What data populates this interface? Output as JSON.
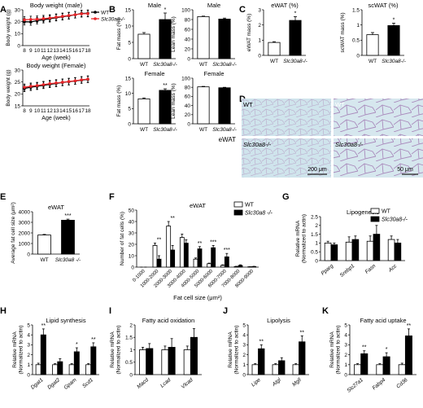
{
  "figure": {
    "panel_letters": [
      "A",
      "B",
      "C",
      "D",
      "E",
      "F",
      "G",
      "H",
      "I",
      "J",
      "K"
    ]
  },
  "chart_data": [
    {
      "id": "A1",
      "type": "line",
      "title": "Body weight (male)",
      "xlabel": "Age (week)",
      "ylabel": "Body weight (g)",
      "x": [
        8,
        9,
        10,
        11,
        12,
        13,
        14,
        15,
        16,
        17,
        18
      ],
      "xlim": [
        8,
        18
      ],
      "ylim": [
        0,
        30
      ],
      "yticks": [
        0,
        10,
        20,
        30
      ],
      "series": [
        {
          "name": "WT",
          "color": "#000000",
          "values": [
            20.0,
            19.8,
            20.9,
            21.7,
            22.5,
            23.4,
            24.2,
            24.9,
            25.8,
            26.9,
            27.1
          ]
        },
        {
          "name": "Slc30a8-/-",
          "color": "#e8262a",
          "values": [
            21.6,
            21.9,
            22.1,
            22.6,
            23.1,
            23.8,
            24.5,
            25.2,
            25.9,
            26.6,
            26.8
          ]
        }
      ]
    },
    {
      "id": "A2",
      "type": "line",
      "title": "Body weight (Female)",
      "xlabel": "Age (week)",
      "ylabel": "Body weight (g)",
      "x": [
        8,
        9,
        10,
        11,
        12,
        13,
        14,
        15,
        16,
        17,
        18
      ],
      "xlim": [
        8,
        18
      ],
      "ylim": [
        15,
        30
      ],
      "yticks": [
        15,
        20,
        25,
        30
      ],
      "series": [
        {
          "name": "WT",
          "color": "#000000",
          "values": [
            22.3,
            22.8,
            23.2,
            23.6,
            24.0,
            24.4,
            24.8,
            25.1,
            25.4,
            25.8,
            26.1
          ]
        },
        {
          "name": "Slc30a8-/-",
          "color": "#e8262a",
          "values": [
            22.8,
            23.2,
            23.5,
            23.9,
            24.3,
            24.6,
            24.9,
            25.2,
            25.5,
            25.9,
            26.2
          ]
        }
      ]
    },
    {
      "id": "B1",
      "type": "bar",
      "title": "Male",
      "ylabel": "Fat mass (%)",
      "categories": [
        "WT",
        "Slc30a8-/-"
      ],
      "values": [
        7.5,
        12.0
      ],
      "errors": [
        0.5,
        2.0
      ],
      "ylim": [
        0,
        15
      ],
      "yticks": [
        0,
        5,
        10,
        15
      ],
      "sig": [
        "",
        "*"
      ]
    },
    {
      "id": "B2",
      "type": "bar",
      "title": "Male",
      "ylabel": "Lean mass (%)",
      "categories": [
        "WT",
        "Slc30a8-/-"
      ],
      "values": [
        86,
        81
      ],
      "errors": [
        1,
        2
      ],
      "ylim": [
        0,
        100
      ],
      "yticks": [
        0,
        20,
        40,
        60,
        80,
        100
      ],
      "sig": [
        "",
        ""
      ]
    },
    {
      "id": "B3",
      "type": "bar",
      "title": "Female",
      "ylabel": "Fat mass (%)",
      "categories": [
        "WT",
        "Slc30a8-/-"
      ],
      "values": [
        8.2,
        11.0
      ],
      "errors": [
        0.3,
        0.5
      ],
      "ylim": [
        0,
        15
      ],
      "yticks": [
        0,
        5,
        10,
        15
      ],
      "sig": [
        "",
        "**"
      ]
    },
    {
      "id": "B4",
      "type": "bar",
      "title": "Female",
      "ylabel": "Lean mass (%)",
      "categories": [
        "WT",
        "Slc30a8-/-"
      ],
      "values": [
        81,
        79
      ],
      "errors": [
        1,
        1
      ],
      "ylim": [
        0,
        100
      ],
      "yticks": [
        0,
        20,
        40,
        60,
        80,
        100
      ],
      "sig": [
        "",
        ""
      ]
    },
    {
      "id": "C1",
      "type": "bar",
      "title": "eWAT (%)",
      "ylabel": "eWAT mass (%)",
      "categories": [
        "WT",
        "Slc30a8-/-"
      ],
      "values": [
        0.85,
        2.3
      ],
      "errors": [
        0.05,
        0.25
      ],
      "ylim": [
        0,
        3
      ],
      "yticks": [
        0,
        1,
        2,
        3
      ],
      "sig": [
        "",
        "*"
      ]
    },
    {
      "id": "C2",
      "type": "bar",
      "title": "scWAT (%)",
      "ylabel": "scWAT mass (%)",
      "categories": [
        "WT",
        "Slc30a8-/-"
      ],
      "values": [
        0.68,
        0.98
      ],
      "errors": [
        0.07,
        0.08
      ],
      "ylim": [
        0,
        1.5
      ],
      "yticks": [
        0,
        0.5,
        1.0,
        1.5
      ],
      "sig": [
        "",
        "*"
      ]
    },
    {
      "id": "E",
      "type": "bar",
      "title": "eWAT",
      "ylabel": "Average fat cell size (μm²)",
      "categories": [
        "WT",
        "Slc30a8 -/-"
      ],
      "values": [
        1800,
        3200
      ],
      "errors": [
        60,
        100
      ],
      "ylim": [
        0,
        4000
      ],
      "yticks": [
        0,
        1000,
        2000,
        3000,
        4000
      ],
      "sig": [
        "",
        "***"
      ]
    },
    {
      "id": "F",
      "type": "bar",
      "title": "eWAT",
      "xlabel": "Fat cell size (μm²)",
      "ylabel": "Number of fat cells (%)",
      "categories": [
        "0-1000",
        "1000-2000",
        "2000-3000",
        "3000-4000",
        "4000-5000",
        "5000-6000",
        "6000-7000",
        "7000-8000",
        "8000-9000"
      ],
      "ylim": [
        0,
        50
      ],
      "yticks": [
        0,
        10,
        20,
        30,
        40,
        50
      ],
      "series": [
        {
          "name": "WT",
          "values": [
            0,
            19,
            36,
            26,
            7,
            3,
            1.5,
            0.5,
            0.3
          ],
          "errors": [
            0,
            2,
            4,
            3,
            1,
            0.5,
            0.5,
            0.2,
            0.1
          ]
        },
        {
          "name": "Slc30a8 -/-",
          "values": [
            0,
            7,
            15,
            21,
            16,
            17,
            9,
            1.5,
            0.5
          ],
          "errors": [
            0,
            3,
            4,
            3,
            2,
            2,
            3,
            0.5,
            0.2
          ]
        }
      ],
      "sig": [
        "",
        "**",
        "**",
        "",
        "**",
        "***",
        "***",
        "",
        ""
      ]
    },
    {
      "id": "G",
      "type": "bar",
      "title": "Lipogenesis",
      "ylabel": "Relative mRNA\n(Normalized to actin)",
      "categories": [
        "Pparg",
        "Srebp1",
        "Fasn",
        "Acc"
      ],
      "ylim": [
        0,
        2.5
      ],
      "yticks": [
        0,
        0.5,
        1.0,
        1.5,
        2.0,
        2.5
      ],
      "series": [
        {
          "name": "WT",
          "values": [
            1.0,
            1.05,
            1.1,
            1.2
          ],
          "errors": [
            0.1,
            0.3,
            0.3,
            0.2
          ]
        },
        {
          "name": "Slc30a8-/-",
          "values": [
            0.9,
            1.2,
            1.5,
            1.0
          ],
          "errors": [
            0.1,
            0.2,
            0.5,
            0.2
          ]
        }
      ],
      "sig": [
        "",
        "",
        "",
        ""
      ]
    },
    {
      "id": "H",
      "type": "bar",
      "title": "Lipid synthesis",
      "ylabel": "Relative mRNA\n(Normalized to actin)",
      "categories": [
        "Dgat1",
        "Dgat2",
        "Gpam",
        "Scd1"
      ],
      "ylim": [
        0,
        5
      ],
      "yticks": [
        0,
        1,
        2,
        3,
        4,
        5
      ],
      "series": [
        {
          "name": "WT",
          "values": [
            1.0,
            1.0,
            1.0,
            1.0
          ],
          "errors": [
            0.15,
            0.1,
            0.1,
            0.1
          ]
        },
        {
          "name": "Slc30a8-/-",
          "values": [
            4.0,
            1.3,
            2.3,
            2.8
          ],
          "errors": [
            0.6,
            0.3,
            0.4,
            0.4
          ]
        }
      ],
      "sig": [
        "**",
        "",
        "*",
        "**"
      ]
    },
    {
      "id": "I",
      "type": "bar",
      "title": "Fatty acid oxidation",
      "ylabel": "Relative mRNA\n(Normalized to actin)",
      "categories": [
        "Macd",
        "Lcad",
        "Vlcad"
      ],
      "ylim": [
        0,
        2.0
      ],
      "yticks": [
        0,
        0.5,
        1.0,
        1.5,
        2.0
      ],
      "series": [
        {
          "name": "WT",
          "values": [
            1.0,
            1.0,
            1.0
          ],
          "errors": [
            0.1,
            0.15,
            0.15
          ]
        },
        {
          "name": "Slc30a8-/-",
          "values": [
            1.05,
            1.1,
            1.5
          ],
          "errors": [
            0.2,
            0.35,
            0.35
          ]
        }
      ],
      "sig": [
        "",
        "",
        ""
      ]
    },
    {
      "id": "J",
      "type": "bar",
      "title": "Lipolysis",
      "ylabel": "Relative mRNA\n(Normalized to actin)",
      "categories": [
        "Lipe",
        "Atgl",
        "Mgll"
      ],
      "ylim": [
        0,
        5
      ],
      "yticks": [
        0,
        1,
        2,
        3,
        4,
        5
      ],
      "series": [
        {
          "name": "WT",
          "values": [
            1.0,
            1.0,
            1.0
          ],
          "errors": [
            0.1,
            0.1,
            0.1
          ]
        },
        {
          "name": "Slc30a8-/-",
          "values": [
            2.6,
            1.4,
            3.3
          ],
          "errors": [
            0.4,
            0.3,
            0.6
          ]
        }
      ],
      "sig": [
        "**",
        "",
        "**"
      ]
    },
    {
      "id": "K",
      "type": "bar",
      "title": "Fatty acid uptake",
      "ylabel": "Relative mRNA\n(Normalized to actin)",
      "categories": [
        "Slc27a1",
        "Fabp4",
        "Cd36"
      ],
      "ylim": [
        0,
        5
      ],
      "yticks": [
        0,
        1,
        2,
        3,
        4,
        5
      ],
      "series": [
        {
          "name": "WT",
          "values": [
            1.0,
            1.0,
            1.0
          ],
          "errors": [
            0.1,
            0.1,
            0.15
          ]
        },
        {
          "name": "Slc30a8-/-",
          "values": [
            2.1,
            1.8,
            3.9
          ],
          "errors": [
            0.3,
            0.4,
            0.7
          ]
        }
      ],
      "sig": [
        "**",
        "*",
        "**"
      ]
    }
  ],
  "panel_d": {
    "side_label": "eWAT",
    "labels": [
      "WT",
      "WT",
      "Slc30a8-/-",
      "Slc30a8-/-"
    ],
    "scale_left": "200 μm",
    "scale_right": "50 μm"
  }
}
